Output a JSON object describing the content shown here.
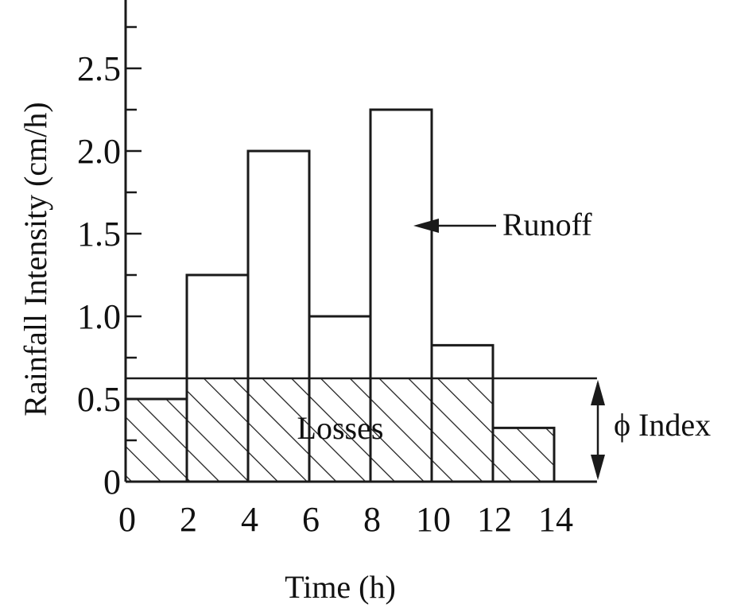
{
  "chart_data": {
    "type": "bar",
    "xlabel": "Time (h)",
    "ylabel": "Rainfall Intensity (cm/h)",
    "x_ticks": [
      "0",
      "2",
      "4",
      "6",
      "8",
      "10",
      "12",
      "14"
    ],
    "y_ticks": [
      "0",
      "0.5",
      "1.0",
      "1.5",
      "2.0",
      "2.5"
    ],
    "xlim": [
      0,
      15.4
    ],
    "ylim": [
      0,
      2.9
    ],
    "bars": [
      {
        "t_start": 0,
        "t_end": 2,
        "intensity": 0.5
      },
      {
        "t_start": 2,
        "t_end": 4,
        "intensity": 1.25
      },
      {
        "t_start": 4,
        "t_end": 6,
        "intensity": 2.0
      },
      {
        "t_start": 6,
        "t_end": 8,
        "intensity": 1.0
      },
      {
        "t_start": 8,
        "t_end": 10,
        "intensity": 2.25
      },
      {
        "t_start": 10,
        "t_end": 12,
        "intensity": 0.825
      },
      {
        "t_start": 12,
        "t_end": 14,
        "intensity": 0.325
      }
    ],
    "phi_index": 0.625,
    "annotations": {
      "runoff": "Runoff",
      "losses": "Losses",
      "phi": "ϕ Index"
    },
    "grid": false,
    "colors": {
      "line": "#1a1a1a",
      "background": "#ffffff"
    }
  }
}
